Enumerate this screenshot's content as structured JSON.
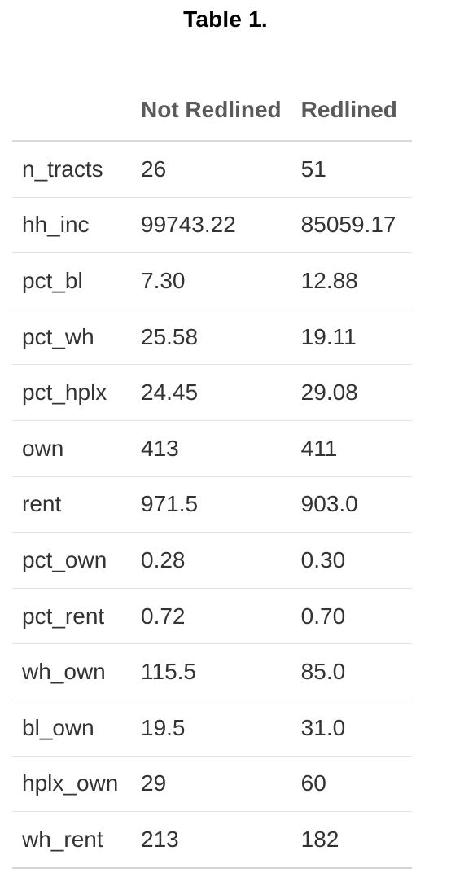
{
  "title": "Table 1.",
  "table": {
    "headers": [
      "",
      "Not Redlined",
      "Redlined"
    ],
    "rows": [
      [
        "n_tracts",
        "26",
        "51"
      ],
      [
        "hh_inc",
        "99743.22",
        "85059.17"
      ],
      [
        "pct_bl",
        "7.30",
        "12.88"
      ],
      [
        "pct_wh",
        "25.58",
        "19.11"
      ],
      [
        "pct_hplx",
        "24.45",
        "29.08"
      ],
      [
        "own",
        "413",
        "411"
      ],
      [
        "rent",
        "971.5",
        "903.0"
      ],
      [
        "pct_own",
        "0.28",
        "0.30"
      ],
      [
        "pct_rent",
        "0.72",
        "0.70"
      ],
      [
        "wh_own",
        "115.5",
        "85.0"
      ],
      [
        "bl_own",
        "19.5",
        "31.0"
      ],
      [
        "hplx_own",
        "29",
        "60"
      ],
      [
        "wh_rent",
        "213",
        "182"
      ]
    ]
  }
}
